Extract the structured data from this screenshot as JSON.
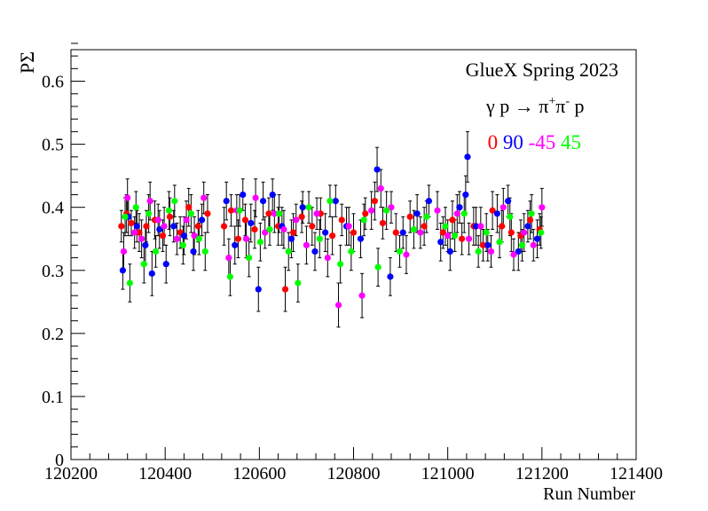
{
  "chart_data": {
    "type": "scatter",
    "title": "",
    "xlabel": "Run Number",
    "ylabel": "PΣ",
    "xlim": [
      120200,
      121400
    ],
    "ylim": [
      0,
      0.65
    ],
    "x_ticks": [
      120200,
      120400,
      120600,
      120800,
      121000,
      121200,
      121400
    ],
    "y_ticks": [
      0,
      0.1,
      0.2,
      0.3,
      0.4,
      0.5,
      0.6
    ],
    "x_tick_labels": [
      "120200",
      "120400",
      "120600",
      "120800",
      "121000",
      "121200",
      "121400"
    ],
    "y_tick_labels": [
      "0",
      "0.1",
      "0.2",
      "0.3",
      "0.4",
      "0.5",
      "0.6"
    ],
    "grid": false,
    "annotations": {
      "experiment": "GlueX Spring 2023",
      "reaction_prefix": "γ p → π",
      "reaction_sup1": "+",
      "reaction_mid": "π",
      "reaction_sup2": "-",
      "reaction_suffix": " p"
    },
    "legend_placement": "top-right",
    "series": [
      {
        "name": "0",
        "color": "#ff0000",
        "points": [
          [
            120307,
            0.37,
            0.025
          ],
          [
            120318,
            0.39,
            0.03
          ],
          [
            120328,
            0.375,
            0.02
          ],
          [
            120345,
            0.36,
            0.03
          ],
          [
            120360,
            0.37,
            0.025
          ],
          [
            120378,
            0.38,
            0.03
          ],
          [
            120395,
            0.355,
            0.025
          ],
          [
            120410,
            0.385,
            0.03
          ],
          [
            120432,
            0.36,
            0.025
          ],
          [
            120450,
            0.4,
            0.03
          ],
          [
            120470,
            0.37,
            0.025
          ],
          [
            120490,
            0.39,
            0.03
          ],
          [
            120525,
            0.37,
            0.03
          ],
          [
            120540,
            0.395,
            0.025
          ],
          [
            120555,
            0.35,
            0.03
          ],
          [
            120570,
            0.38,
            0.025
          ],
          [
            120590,
            0.365,
            0.03
          ],
          [
            120620,
            0.39,
            0.025
          ],
          [
            120640,
            0.37,
            0.03
          ],
          [
            120655,
            0.27,
            0.035
          ],
          [
            120672,
            0.36,
            0.03
          ],
          [
            120690,
            0.385,
            0.025
          ],
          [
            120712,
            0.37,
            0.03
          ],
          [
            120730,
            0.39,
            0.025
          ],
          [
            120755,
            0.355,
            0.03
          ],
          [
            120775,
            0.38,
            0.025
          ],
          [
            120800,
            0.36,
            0.03
          ],
          [
            120825,
            0.39,
            0.025
          ],
          [
            120845,
            0.41,
            0.03
          ],
          [
            120862,
            0.375,
            0.025
          ],
          [
            120890,
            0.36,
            0.03
          ],
          [
            120920,
            0.385,
            0.025
          ],
          [
            120950,
            0.37,
            0.03
          ],
          [
            120990,
            0.36,
            0.025
          ],
          [
            121010,
            0.38,
            0.03
          ],
          [
            121030,
            0.35,
            0.025
          ],
          [
            121055,
            0.37,
            0.03
          ],
          [
            121075,
            0.34,
            0.025
          ],
          [
            121095,
            0.395,
            0.03
          ],
          [
            121115,
            0.37,
            0.025
          ],
          [
            121135,
            0.36,
            0.03
          ],
          [
            121155,
            0.355,
            0.025
          ],
          [
            121175,
            0.38,
            0.03
          ],
          [
            121195,
            0.365,
            0.025
          ]
        ]
      },
      {
        "name": "90",
        "color": "#0000ff",
        "points": [
          [
            120310,
            0.3,
            0.03
          ],
          [
            120322,
            0.385,
            0.03
          ],
          [
            120340,
            0.37,
            0.025
          ],
          [
            120358,
            0.34,
            0.03
          ],
          [
            120372,
            0.295,
            0.035
          ],
          [
            120388,
            0.365,
            0.03
          ],
          [
            120402,
            0.31,
            0.03
          ],
          [
            120418,
            0.37,
            0.025
          ],
          [
            120440,
            0.355,
            0.03
          ],
          [
            120460,
            0.33,
            0.03
          ],
          [
            120478,
            0.38,
            0.025
          ],
          [
            120530,
            0.41,
            0.03
          ],
          [
            120548,
            0.34,
            0.03
          ],
          [
            120565,
            0.42,
            0.025
          ],
          [
            120582,
            0.375,
            0.03
          ],
          [
            120598,
            0.27,
            0.035
          ],
          [
            120608,
            0.41,
            0.03
          ],
          [
            120628,
            0.42,
            0.025
          ],
          [
            120648,
            0.37,
            0.03
          ],
          [
            120668,
            0.35,
            0.03
          ],
          [
            120692,
            0.4,
            0.025
          ],
          [
            120718,
            0.33,
            0.03
          ],
          [
            120740,
            0.36,
            0.03
          ],
          [
            120762,
            0.41,
            0.025
          ],
          [
            120785,
            0.37,
            0.03
          ],
          [
            120815,
            0.35,
            0.03
          ],
          [
            120850,
            0.46,
            0.035
          ],
          [
            120878,
            0.29,
            0.03
          ],
          [
            120905,
            0.36,
            0.025
          ],
          [
            120935,
            0.39,
            0.03
          ],
          [
            120960,
            0.41,
            0.025
          ],
          [
            120985,
            0.345,
            0.03
          ],
          [
            121005,
            0.33,
            0.03
          ],
          [
            121025,
            0.4,
            0.025
          ],
          [
            121038,
            0.42,
            0.03
          ],
          [
            121042,
            0.48,
            0.04
          ],
          [
            121060,
            0.37,
            0.03
          ],
          [
            121085,
            0.34,
            0.025
          ],
          [
            121105,
            0.39,
            0.03
          ],
          [
            121128,
            0.41,
            0.025
          ],
          [
            121150,
            0.33,
            0.03
          ],
          [
            121170,
            0.37,
            0.025
          ],
          [
            121190,
            0.35,
            0.03
          ]
        ]
      },
      {
        "name": "-45",
        "color": "#ff00ff",
        "points": [
          [
            120312,
            0.33,
            0.03
          ],
          [
            120320,
            0.415,
            0.03
          ],
          [
            120335,
            0.36,
            0.025
          ],
          [
            120350,
            0.35,
            0.03
          ],
          [
            120368,
            0.41,
            0.03
          ],
          [
            120385,
            0.38,
            0.025
          ],
          [
            120398,
            0.37,
            0.03
          ],
          [
            120425,
            0.35,
            0.025
          ],
          [
            120445,
            0.38,
            0.03
          ],
          [
            120462,
            0.355,
            0.03
          ],
          [
            120482,
            0.415,
            0.025
          ],
          [
            120535,
            0.32,
            0.03
          ],
          [
            120552,
            0.395,
            0.025
          ],
          [
            120572,
            0.35,
            0.03
          ],
          [
            120592,
            0.415,
            0.03
          ],
          [
            120612,
            0.36,
            0.025
          ],
          [
            120632,
            0.39,
            0.03
          ],
          [
            120652,
            0.365,
            0.03
          ],
          [
            120678,
            0.38,
            0.025
          ],
          [
            120700,
            0.34,
            0.03
          ],
          [
            120722,
            0.39,
            0.025
          ],
          [
            120745,
            0.32,
            0.03
          ],
          [
            120768,
            0.245,
            0.035
          ],
          [
            120790,
            0.37,
            0.03
          ],
          [
            120818,
            0.26,
            0.035
          ],
          [
            120838,
            0.395,
            0.03
          ],
          [
            120858,
            0.43,
            0.03
          ],
          [
            120880,
            0.4,
            0.025
          ],
          [
            120912,
            0.325,
            0.03
          ],
          [
            120942,
            0.36,
            0.025
          ],
          [
            120978,
            0.395,
            0.03
          ],
          [
            121000,
            0.355,
            0.025
          ],
          [
            121020,
            0.39,
            0.03
          ],
          [
            121045,
            0.35,
            0.025
          ],
          [
            121070,
            0.37,
            0.03
          ],
          [
            121092,
            0.33,
            0.025
          ],
          [
            121118,
            0.4,
            0.03
          ],
          [
            121140,
            0.325,
            0.025
          ],
          [
            121162,
            0.36,
            0.03
          ],
          [
            121182,
            0.34,
            0.025
          ],
          [
            121200,
            0.4,
            0.03
          ]
        ]
      },
      {
        "name": "45",
        "color": "#00ff00",
        "points": [
          [
            120315,
            0.385,
            0.03
          ],
          [
            120325,
            0.28,
            0.03
          ],
          [
            120338,
            0.4,
            0.025
          ],
          [
            120355,
            0.31,
            0.03
          ],
          [
            120365,
            0.39,
            0.03
          ],
          [
            120380,
            0.33,
            0.025
          ],
          [
            120408,
            0.395,
            0.03
          ],
          [
            120420,
            0.41,
            0.025
          ],
          [
            120438,
            0.34,
            0.03
          ],
          [
            120455,
            0.39,
            0.03
          ],
          [
            120472,
            0.35,
            0.025
          ],
          [
            120485,
            0.33,
            0.03
          ],
          [
            120538,
            0.29,
            0.03
          ],
          [
            120558,
            0.395,
            0.025
          ],
          [
            120578,
            0.32,
            0.03
          ],
          [
            120602,
            0.345,
            0.03
          ],
          [
            120622,
            0.365,
            0.025
          ],
          [
            120642,
            0.39,
            0.03
          ],
          [
            120662,
            0.33,
            0.03
          ],
          [
            120682,
            0.28,
            0.03
          ],
          [
            120705,
            0.4,
            0.025
          ],
          [
            120728,
            0.35,
            0.03
          ],
          [
            120750,
            0.41,
            0.025
          ],
          [
            120772,
            0.31,
            0.03
          ],
          [
            120795,
            0.33,
            0.03
          ],
          [
            120822,
            0.38,
            0.025
          ],
          [
            120852,
            0.305,
            0.03
          ],
          [
            120870,
            0.395,
            0.03
          ],
          [
            120898,
            0.33,
            0.025
          ],
          [
            120928,
            0.365,
            0.03
          ],
          [
            120955,
            0.385,
            0.025
          ],
          [
            120995,
            0.37,
            0.03
          ],
          [
            121015,
            0.355,
            0.025
          ],
          [
            121035,
            0.39,
            0.03
          ],
          [
            121065,
            0.33,
            0.025
          ],
          [
            121082,
            0.36,
            0.03
          ],
          [
            121110,
            0.345,
            0.025
          ],
          [
            121132,
            0.385,
            0.03
          ],
          [
            121158,
            0.34,
            0.025
          ],
          [
            121178,
            0.39,
            0.03
          ],
          [
            121198,
            0.36,
            0.025
          ]
        ]
      }
    ]
  }
}
